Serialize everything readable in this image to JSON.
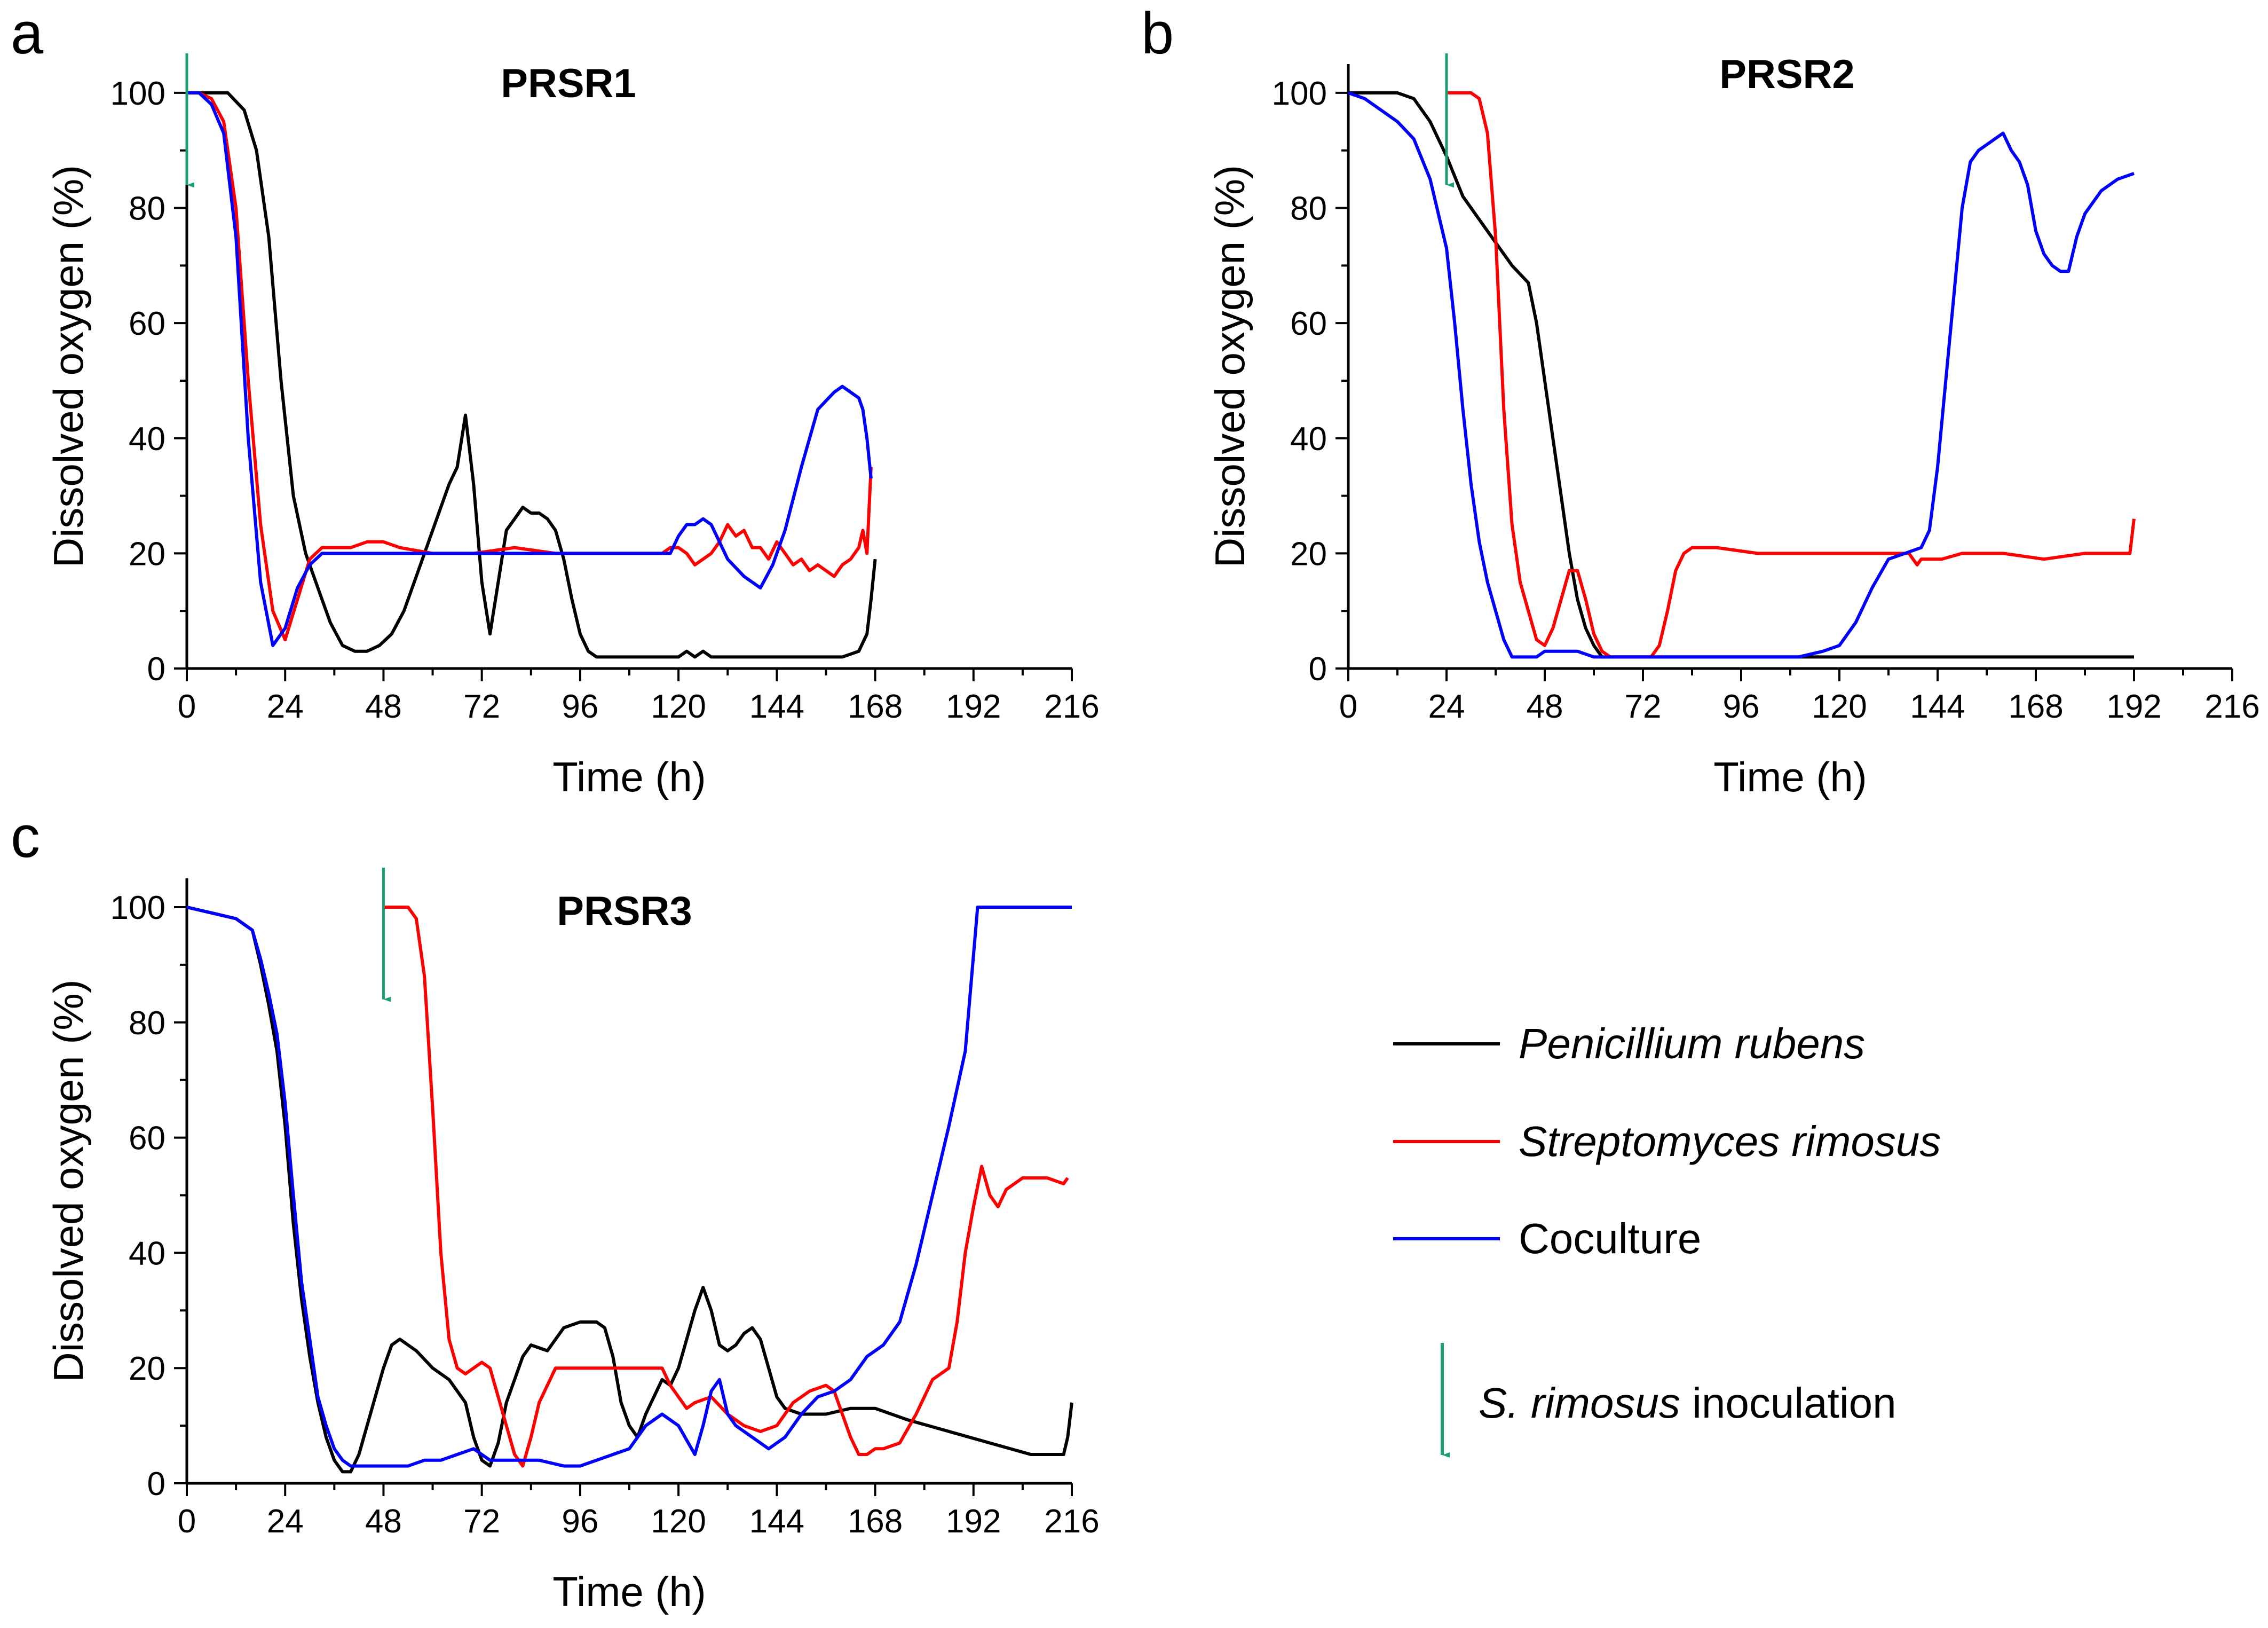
{
  "figure": {
    "series_colors": {
      "penicillium": "#000000",
      "streptomyces": "#ff0000",
      "coculture": "#0000ff"
    },
    "arrow_color": "#1a9e77"
  },
  "legend": {
    "items": [
      {
        "key": "penicillium",
        "label": "Penicillium rubens",
        "italic": true,
        "color": "#000000"
      },
      {
        "key": "streptomyces",
        "label": "Streptomyces rimosus",
        "italic": true,
        "color": "#ff0000"
      },
      {
        "key": "coculture",
        "label": "Coculture",
        "italic": false,
        "color": "#0000ff"
      }
    ],
    "arrow_label_italic": "S. rimosus",
    "arrow_label_rest": " inoculation"
  },
  "chart_data": [
    {
      "type": "line",
      "panel": "a",
      "title": "PRSR1",
      "xlabel": "Time (h)",
      "ylabel": "Dissolved oxygen (%)",
      "xlim": [
        0,
        216
      ],
      "ylim": [
        0,
        105
      ],
      "xticks": [
        0,
        24,
        48,
        72,
        96,
        120,
        144,
        168,
        192,
        216
      ],
      "yticks": [
        0,
        20,
        40,
        60,
        80,
        100
      ],
      "inoculation_time": 0,
      "series": [
        {
          "name": "Penicillium rubens",
          "key": "penicillium",
          "color": "#000000",
          "x": [
            0,
            10,
            14,
            17,
            20,
            23,
            26,
            29,
            32,
            35,
            38,
            41,
            44,
            47,
            50,
            53,
            56,
            59,
            62,
            64,
            66,
            68,
            70,
            72,
            74,
            76,
            78,
            80,
            82,
            84,
            86,
            88,
            90,
            92,
            94,
            96,
            98,
            100,
            103,
            110,
            120,
            122,
            124,
            126,
            128,
            140,
            150,
            160,
            164,
            166,
            167,
            168
          ],
          "y": [
            100,
            100,
            97,
            90,
            75,
            50,
            30,
            20,
            14,
            8,
            4,
            3,
            3,
            4,
            6,
            10,
            16,
            22,
            28,
            32,
            35,
            44,
            32,
            15,
            6,
            15,
            24,
            26,
            28,
            27,
            27,
            26,
            24,
            19,
            12,
            6,
            3,
            2,
            2,
            2,
            2,
            3,
            2,
            3,
            2,
            2,
            2,
            2,
            3,
            6,
            12,
            19
          ]
        },
        {
          "name": "Streptomyces rimosus",
          "key": "streptomyces",
          "color": "#ff0000",
          "x": [
            0,
            3,
            6,
            9,
            12,
            15,
            18,
            21,
            24,
            27,
            30,
            33,
            36,
            40,
            44,
            48,
            52,
            60,
            70,
            80,
            90,
            100,
            110,
            116,
            118,
            120,
            122,
            124,
            126,
            128,
            130,
            132,
            134,
            136,
            138,
            140,
            142,
            144,
            146,
            148,
            150,
            152,
            154,
            156,
            158,
            160,
            162,
            164,
            165,
            166,
            167
          ],
          "y": [
            100,
            100,
            99,
            95,
            80,
            50,
            25,
            10,
            5,
            12,
            19,
            21,
            21,
            21,
            22,
            22,
            21,
            20,
            20,
            21,
            20,
            20,
            20,
            20,
            21,
            21,
            20,
            18,
            19,
            20,
            22,
            25,
            23,
            24,
            21,
            21,
            19,
            22,
            20,
            18,
            19,
            17,
            18,
            17,
            16,
            18,
            19,
            21,
            24,
            20,
            35
          ]
        },
        {
          "name": "Coculture",
          "key": "coculture",
          "color": "#0000ff",
          "x": [
            0,
            3,
            6,
            9,
            12,
            15,
            18,
            21,
            24,
            27,
            30,
            33,
            40,
            50,
            60,
            70,
            80,
            90,
            100,
            110,
            118,
            120,
            122,
            124,
            126,
            128,
            130,
            132,
            136,
            140,
            143,
            146,
            150,
            154,
            158,
            160,
            162,
            164,
            165,
            166,
            167
          ],
          "y": [
            100,
            100,
            98,
            93,
            75,
            40,
            15,
            4,
            7,
            14,
            18,
            20,
            20,
            20,
            20,
            20,
            20,
            20,
            20,
            20,
            20,
            23,
            25,
            25,
            26,
            25,
            22,
            19,
            16,
            14,
            18,
            24,
            35,
            45,
            48,
            49,
            48,
            47,
            45,
            40,
            33
          ]
        }
      ]
    },
    {
      "type": "line",
      "panel": "b",
      "title": "PRSR2",
      "xlabel": "Time (h)",
      "ylabel": "Dissolved oxygen (%)",
      "xlim": [
        0,
        216
      ],
      "ylim": [
        0,
        105
      ],
      "xticks": [
        0,
        24,
        48,
        72,
        96,
        120,
        144,
        168,
        192,
        216
      ],
      "yticks": [
        0,
        20,
        40,
        60,
        80,
        100
      ],
      "inoculation_time": 24,
      "series": [
        {
          "name": "Penicillium rubens",
          "key": "penicillium",
          "color": "#000000",
          "x": [
            0,
            4,
            8,
            12,
            16,
            20,
            24,
            28,
            32,
            36,
            40,
            44,
            46,
            48,
            50,
            52,
            54,
            56,
            58,
            60,
            62,
            64,
            70,
            80,
            90,
            100,
            120,
            140,
            160,
            180,
            190,
            192
          ],
          "y": [
            100,
            100,
            100,
            100,
            99,
            95,
            89,
            82,
            78,
            74,
            70,
            67,
            60,
            50,
            40,
            30,
            20,
            12,
            7,
            4,
            2,
            2,
            2,
            2,
            2,
            2,
            2,
            2,
            2,
            2,
            2,
            2
          ]
        },
        {
          "name": "Streptomyces rimosus",
          "key": "streptomyces",
          "color": "#ff0000",
          "x": [
            24,
            26,
            30,
            32,
            34,
            36,
            38,
            40,
            42,
            44,
            46,
            48,
            50,
            52,
            54,
            56,
            58,
            60,
            62,
            64,
            66,
            70,
            74,
            76,
            78,
            80,
            82,
            84,
            90,
            100,
            110,
            120,
            130,
            137,
            138,
            139,
            140,
            145,
            150,
            160,
            170,
            180,
            191,
            192
          ],
          "y": [
            100,
            100,
            100,
            99,
            93,
            75,
            45,
            25,
            15,
            10,
            5,
            4,
            7,
            12,
            17,
            17,
            12,
            6,
            3,
            2,
            2,
            2,
            2,
            4,
            10,
            17,
            20,
            21,
            21,
            20,
            20,
            20,
            20,
            20,
            19,
            18,
            19,
            19,
            20,
            20,
            19,
            20,
            20,
            26
          ]
        },
        {
          "name": "Coculture",
          "key": "coculture",
          "color": "#0000ff",
          "x": [
            0,
            4,
            8,
            12,
            16,
            20,
            24,
            26,
            28,
            30,
            32,
            34,
            36,
            38,
            40,
            42,
            44,
            46,
            48,
            50,
            52,
            56,
            60,
            70,
            80,
            90,
            100,
            110,
            116,
            120,
            124,
            128,
            132,
            136,
            140,
            142,
            144,
            146,
            148,
            150,
            152,
            154,
            156,
            158,
            160,
            162,
            164,
            166,
            168,
            170,
            172,
            174,
            176,
            178,
            180,
            184,
            188,
            192
          ],
          "y": [
            100,
            99,
            97,
            95,
            92,
            85,
            73,
            60,
            45,
            32,
            22,
            15,
            10,
            5,
            2,
            2,
            2,
            2,
            3,
            3,
            3,
            3,
            2,
            2,
            2,
            2,
            2,
            2,
            3,
            4,
            8,
            14,
            19,
            20,
            21,
            24,
            35,
            50,
            65,
            80,
            88,
            90,
            91,
            92,
            93,
            90,
            88,
            84,
            76,
            72,
            70,
            69,
            69,
            75,
            79,
            83,
            85,
            86
          ]
        }
      ]
    },
    {
      "type": "line",
      "panel": "c",
      "title": "PRSR3",
      "xlabel": "Time (h)",
      "ylabel": "Dissolved oxygen (%)",
      "xlim": [
        0,
        216
      ],
      "ylim": [
        0,
        105
      ],
      "xticks": [
        0,
        24,
        48,
        72,
        96,
        120,
        144,
        168,
        192,
        216
      ],
      "yticks": [
        0,
        20,
        40,
        60,
        80,
        100
      ],
      "inoculation_time": 48,
      "series": [
        {
          "name": "Penicillium rubens",
          "key": "penicillium",
          "color": "#000000",
          "x": [
            0,
            6,
            12,
            16,
            18,
            20,
            22,
            24,
            26,
            28,
            30,
            32,
            34,
            36,
            38,
            40,
            42,
            44,
            46,
            48,
            50,
            52,
            56,
            60,
            64,
            68,
            70,
            72,
            74,
            76,
            78,
            80,
            82,
            84,
            88,
            92,
            96,
            100,
            102,
            104,
            106,
            108,
            110,
            112,
            114,
            116,
            118,
            120,
            122,
            124,
            126,
            128,
            130,
            132,
            134,
            136,
            138,
            140,
            142,
            144,
            146,
            150,
            156,
            162,
            168,
            176,
            186,
            196,
            206,
            214,
            215,
            216
          ],
          "y": [
            100,
            99,
            98,
            96,
            90,
            83,
            75,
            62,
            45,
            32,
            22,
            14,
            8,
            4,
            2,
            2,
            5,
            10,
            15,
            20,
            24,
            25,
            23,
            20,
            18,
            14,
            8,
            4,
            3,
            7,
            14,
            18,
            22,
            24,
            23,
            27,
            28,
            28,
            27,
            22,
            14,
            10,
            8,
            12,
            15,
            18,
            17,
            20,
            25,
            30,
            34,
            30,
            24,
            23,
            24,
            26,
            27,
            25,
            20,
            15,
            13,
            12,
            12,
            13,
            13,
            11,
            9,
            7,
            5,
            5,
            8,
            14
          ]
        },
        {
          "name": "Streptomyces rimosus",
          "key": "streptomyces",
          "color": "#ff0000",
          "x": [
            48,
            52,
            54,
            56,
            58,
            60,
            62,
            64,
            66,
            68,
            70,
            72,
            74,
            76,
            78,
            80,
            82,
            84,
            86,
            90,
            94,
            100,
            110,
            116,
            118,
            120,
            122,
            124,
            128,
            132,
            136,
            140,
            144,
            148,
            152,
            156,
            158,
            160,
            162,
            164,
            166,
            168,
            170,
            174,
            178,
            182,
            186,
            188,
            190,
            192,
            194,
            196,
            198,
            200,
            204,
            210,
            214,
            215
          ],
          "y": [
            100,
            100,
            100,
            98,
            88,
            65,
            40,
            25,
            20,
            19,
            20,
            21,
            20,
            15,
            10,
            5,
            3,
            8,
            14,
            20,
            20,
            20,
            20,
            20,
            17,
            15,
            13,
            14,
            15,
            12,
            10,
            9,
            10,
            14,
            16,
            17,
            16,
            12,
            8,
            5,
            5,
            6,
            6,
            7,
            12,
            18,
            20,
            28,
            40,
            48,
            55,
            50,
            48,
            51,
            53,
            53,
            52,
            53
          ]
        },
        {
          "name": "Coculture",
          "key": "coculture",
          "color": "#0000ff",
          "x": [
            0,
            6,
            12,
            16,
            18,
            20,
            22,
            24,
            26,
            28,
            30,
            32,
            34,
            36,
            38,
            40,
            42,
            46,
            50,
            54,
            58,
            62,
            66,
            70,
            74,
            80,
            86,
            92,
            96,
            100,
            104,
            108,
            110,
            112,
            116,
            120,
            124,
            126,
            128,
            130,
            132,
            134,
            138,
            142,
            146,
            150,
            154,
            158,
            162,
            166,
            170,
            174,
            178,
            182,
            186,
            190,
            193,
            196,
            200,
            206,
            212,
            216
          ],
          "y": [
            100,
            99,
            98,
            96,
            91,
            85,
            78,
            66,
            50,
            35,
            25,
            15,
            10,
            6,
            4,
            3,
            3,
            3,
            3,
            3,
            4,
            4,
            5,
            6,
            4,
            4,
            4,
            3,
            3,
            4,
            5,
            6,
            8,
            10,
            12,
            10,
            5,
            10,
            16,
            18,
            12,
            10,
            8,
            6,
            8,
            12,
            15,
            16,
            18,
            22,
            24,
            28,
            38,
            50,
            62,
            75,
            100,
            100,
            100,
            100,
            100,
            100
          ]
        }
      ]
    }
  ]
}
